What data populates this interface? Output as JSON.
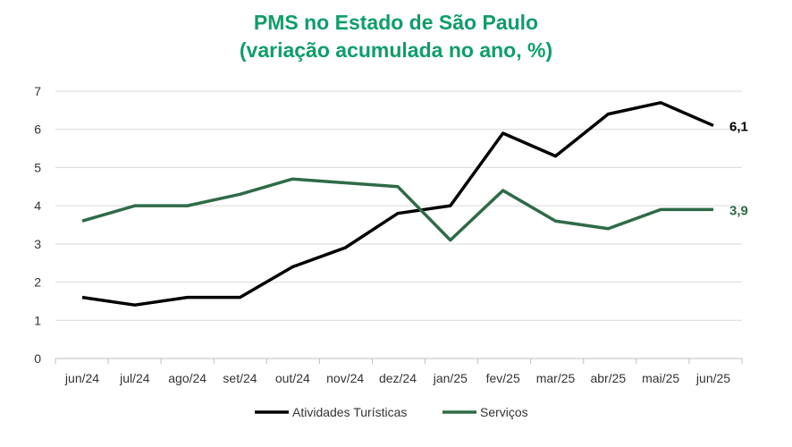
{
  "colors": {
    "title": "#0f9d6a",
    "series_a": "#000000",
    "series_b": "#2e6b47",
    "grid": "#d9d9d9",
    "axis": "#bfbfbf"
  },
  "chart_data": {
    "type": "line",
    "title": "PMS no Estado de São Paulo",
    "subtitle": "(variação acumulada no ano, %)",
    "categories": [
      "jun/24",
      "jul/24",
      "ago/24",
      "set/24",
      "out/24",
      "nov/24",
      "dez/24",
      "jan/25",
      "fev/25",
      "mar/25",
      "abr/25",
      "mai/25",
      "jun/25"
    ],
    "series": [
      {
        "name": "Atividades Turísticas",
        "values": [
          1.6,
          1.4,
          1.6,
          1.6,
          2.4,
          2.9,
          3.8,
          4.0,
          5.9,
          5.3,
          6.4,
          6.7,
          6.1
        ],
        "end_label": "6,1"
      },
      {
        "name": "Serviços",
        "values": [
          3.6,
          4.0,
          4.0,
          4.3,
          4.7,
          4.6,
          4.5,
          3.1,
          4.4,
          3.6,
          3.4,
          3.9,
          3.9
        ],
        "end_label": "3,9"
      }
    ],
    "ylim": [
      0,
      7
    ],
    "yticks": [
      "0",
      "1",
      "2",
      "3",
      "4",
      "5",
      "6",
      "7"
    ],
    "grid": true,
    "legend": "bottom"
  }
}
